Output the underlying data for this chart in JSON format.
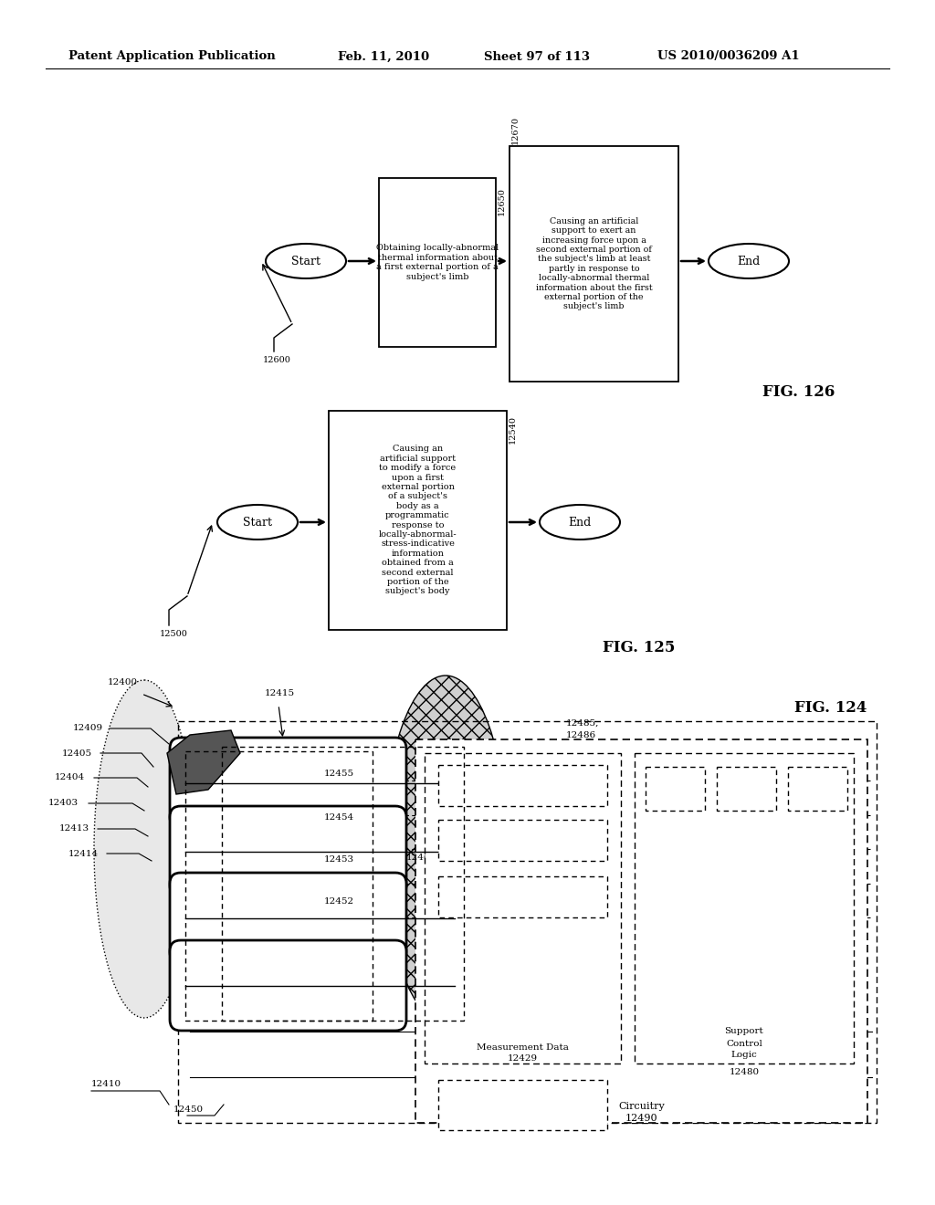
{
  "bg_color": "#ffffff",
  "header_text": "Patent Application Publication",
  "header_date": "Feb. 11, 2010",
  "header_sheet": "Sheet 97 of 113",
  "header_patent": "US 2010/0036209 A1",
  "fig126_label": "FIG. 126",
  "fig125_label": "FIG. 125",
  "fig124_label": "FIG. 124",
  "box1_126_text": "Obtaining locally-abnormal\nthermal information about\na first external portion of a\nsubject's limb",
  "box2_126_text": "Causing an artificial\nsupport to exert an\nincreasing force upon a\nsecond external portion of\nthe subject's limb at least\npartly in response to\nlocally-abnormal thermal\ninformation about the first\nexternal portion of the\nsubject's limb",
  "box1_125_text": "Causing an\nartificial support\nto modify a force\nupon a first\nexternal portion\nof a subject's\nbody as a\nprogrammatic\nresponse to\nlocally-abnormal-\nstress-indicative\ninformation\nobtained from a\nsecond external\nportion of the\nsubject's body",
  "ref126": "12600",
  "ref125": "12500",
  "ref126_b1": "12650",
  "ref126_b2": "12670",
  "ref125_b1": "12540"
}
